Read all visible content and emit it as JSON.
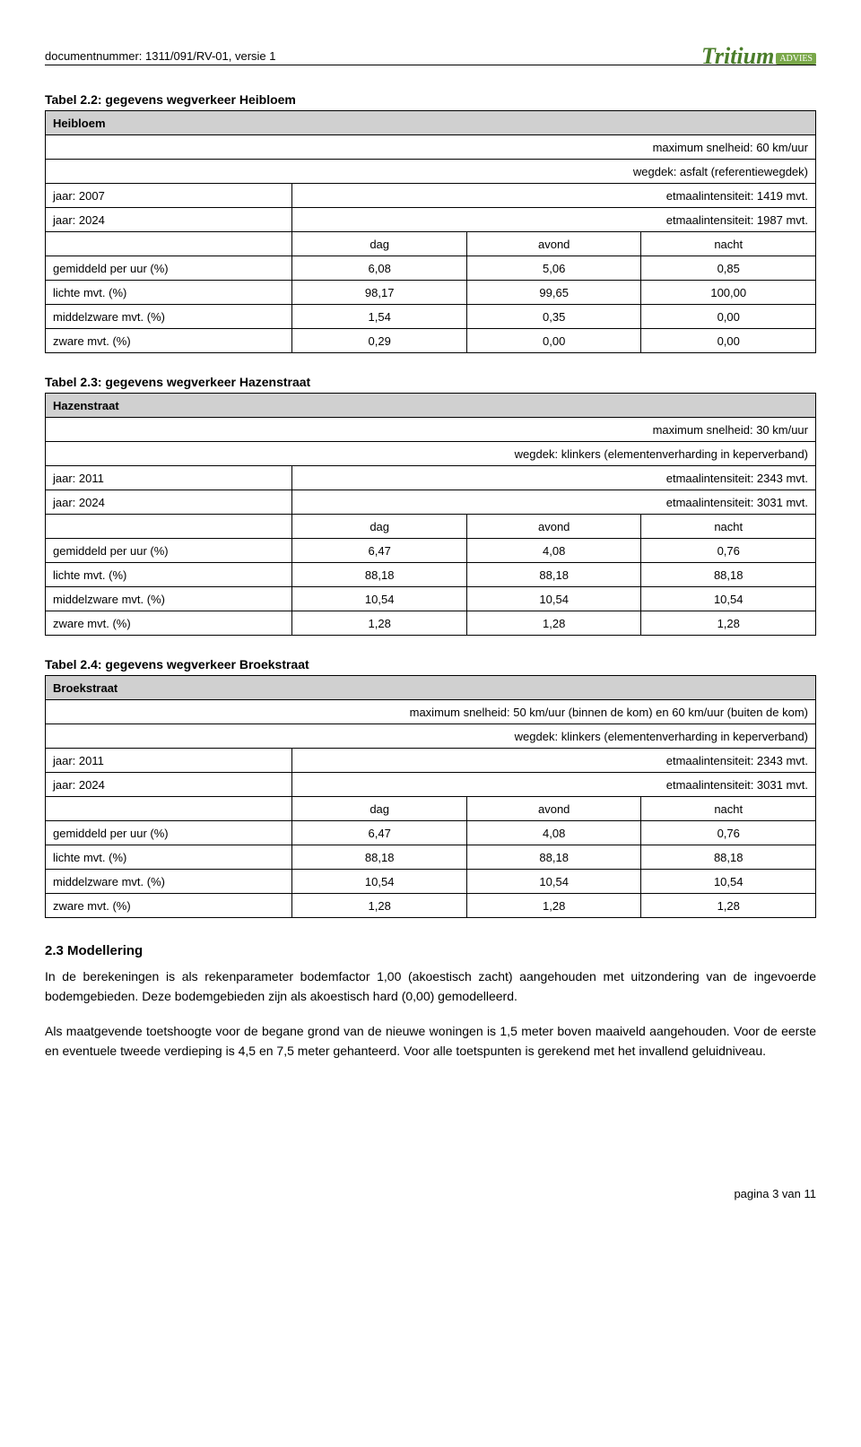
{
  "header": {
    "docnum": "documentnummer: 1311/091/RV-01, versie 1",
    "logo_main": "Tritium",
    "logo_sub": "ADVIES"
  },
  "tables": [
    {
      "title": "Tabel 2.2: gegevens wegverkeer Heibloem",
      "street": "Heibloem",
      "max_speed": "maximum snelheid: 60 km/uur",
      "wegdek": "wegdek: asfalt (referentiewegdek)",
      "year1_label": "jaar: 2007",
      "year1_val": "etmaalintensiteit: 1419 mvt.",
      "year2_label": "jaar: 2024",
      "year2_val": "etmaalintensiteit: 1987 mvt.",
      "col_headers": [
        "",
        "dag",
        "avond",
        "nacht"
      ],
      "rows": [
        [
          "gemiddeld per uur (%)",
          "6,08",
          "5,06",
          "0,85"
        ],
        [
          "lichte mvt. (%)",
          "98,17",
          "99,65",
          "100,00"
        ],
        [
          "middelzware mvt. (%)",
          "1,54",
          "0,35",
          "0,00"
        ],
        [
          "zware mvt. (%)",
          "0,29",
          "0,00",
          "0,00"
        ]
      ]
    },
    {
      "title": "Tabel 2.3: gegevens wegverkeer Hazenstraat",
      "street": "Hazenstraat",
      "max_speed": "maximum snelheid: 30 km/uur",
      "wegdek": "wegdek: klinkers (elementenverharding in keperverband)",
      "year1_label": "jaar: 2011",
      "year1_val": "etmaalintensiteit: 2343 mvt.",
      "year2_label": "jaar: 2024",
      "year2_val": "etmaalintensiteit: 3031 mvt.",
      "col_headers": [
        "",
        "dag",
        "avond",
        "nacht"
      ],
      "rows": [
        [
          "gemiddeld per uur (%)",
          "6,47",
          "4,08",
          "0,76"
        ],
        [
          "lichte mvt. (%)",
          "88,18",
          "88,18",
          "88,18"
        ],
        [
          "middelzware mvt. (%)",
          "10,54",
          "10,54",
          "10,54"
        ],
        [
          "zware mvt. (%)",
          "1,28",
          "1,28",
          "1,28"
        ]
      ]
    },
    {
      "title": "Tabel 2.4: gegevens wegverkeer Broekstraat",
      "street": "Broekstraat",
      "max_speed": "maximum snelheid: 50 km/uur (binnen de kom) en 60 km/uur (buiten de kom)",
      "wegdek": "wegdek: klinkers (elementenverharding in keperverband)",
      "year1_label": "jaar: 2011",
      "year1_val": "etmaalintensiteit: 2343 mvt.",
      "year2_label": "jaar: 2024",
      "year2_val": "etmaalintensiteit: 3031 mvt.",
      "col_headers": [
        "",
        "dag",
        "avond",
        "nacht"
      ],
      "rows": [
        [
          "gemiddeld per uur (%)",
          "6,47",
          "4,08",
          "0,76"
        ],
        [
          "lichte mvt. (%)",
          "88,18",
          "88,18",
          "88,18"
        ],
        [
          "middelzware mvt. (%)",
          "10,54",
          "10,54",
          "10,54"
        ],
        [
          "zware mvt. (%)",
          "1,28",
          "1,28",
          "1,28"
        ]
      ]
    }
  ],
  "section": {
    "heading": "2.3    Modellering",
    "p1": "In de berekeningen is als rekenparameter bodemfactor 1,00 (akoestisch zacht) aangehouden met uitzondering van de ingevoerde bodemgebieden. Deze bodemgebieden zijn als akoestisch hard (0,00) gemodelleerd.",
    "p2": "Als maatgevende toetshoogte voor de begane grond van de nieuwe woningen is 1,5 meter boven maaiveld aangehouden. Voor de eerste en eventuele tweede verdieping is 4,5 en 7,5 meter gehanteerd. Voor alle toetspunten is gerekend met het invallend geluidniveau."
  },
  "footer": "pagina 3 van 11"
}
